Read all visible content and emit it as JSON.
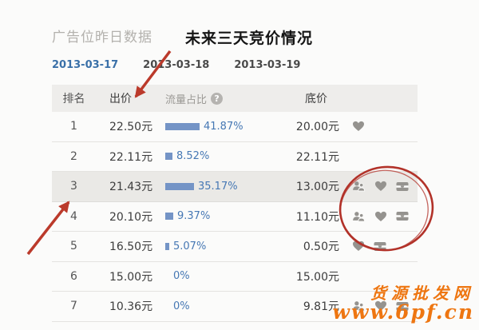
{
  "header": {
    "title": "广告位昨日数据",
    "annotation": "未来三天竞价情况"
  },
  "tabs": [
    {
      "label": "2013-03-17",
      "active": true
    },
    {
      "label": "2013-03-18",
      "active": false
    },
    {
      "label": "2013-03-19",
      "active": false
    }
  ],
  "table": {
    "headers": {
      "rank": "排名",
      "bid": "出价",
      "traffic": "流量占比",
      "floor": "底价"
    },
    "help_icon": "?",
    "rows": [
      {
        "rank": "1",
        "bid": "22.50元",
        "traffic_pct": "41.87%",
        "traffic_value": 41.87,
        "floor": "20.00元",
        "icons": [
          "heart"
        ],
        "highlighted": false
      },
      {
        "rank": "2",
        "bid": "22.11元",
        "traffic_pct": "8.52%",
        "traffic_value": 8.52,
        "floor": "22.11元",
        "icons": [],
        "highlighted": false
      },
      {
        "rank": "3",
        "bid": "21.43元",
        "traffic_pct": "35.17%",
        "traffic_value": 35.17,
        "floor": "13.00元",
        "icons": [
          "users",
          "heart",
          "shop"
        ],
        "highlighted": true
      },
      {
        "rank": "4",
        "bid": "20.10元",
        "traffic_pct": "9.37%",
        "traffic_value": 9.37,
        "floor": "11.10元",
        "icons": [
          "users",
          "heart",
          "shop"
        ],
        "highlighted": false
      },
      {
        "rank": "5",
        "bid": "16.50元",
        "traffic_pct": "5.07%",
        "traffic_value": 5.07,
        "floor": "0.50元",
        "icons": [
          "heart",
          "shop"
        ],
        "highlighted": false
      },
      {
        "rank": "6",
        "bid": "15.00元",
        "traffic_pct": "0%",
        "traffic_value": 0,
        "floor": "15.00元",
        "icons": [],
        "highlighted": false
      },
      {
        "rank": "7",
        "bid": "10.36元",
        "traffic_pct": "0%",
        "traffic_value": 0,
        "floor": "9.81元",
        "icons": [
          "users",
          "heart",
          "shop"
        ],
        "highlighted": false
      }
    ]
  },
  "watermark": {
    "line1": "货源批发网",
    "line2": "www.6pf.cn"
  },
  "colors": {
    "accent-blue": "#3a70a8",
    "bar-blue": "#7494c6",
    "percent-blue": "#4678b4",
    "annotation-red": "#bb3a2b",
    "watermark-orange": "#ee7611",
    "highlight-bg": "#eae9e6",
    "header-bg": "#eeedeb"
  }
}
